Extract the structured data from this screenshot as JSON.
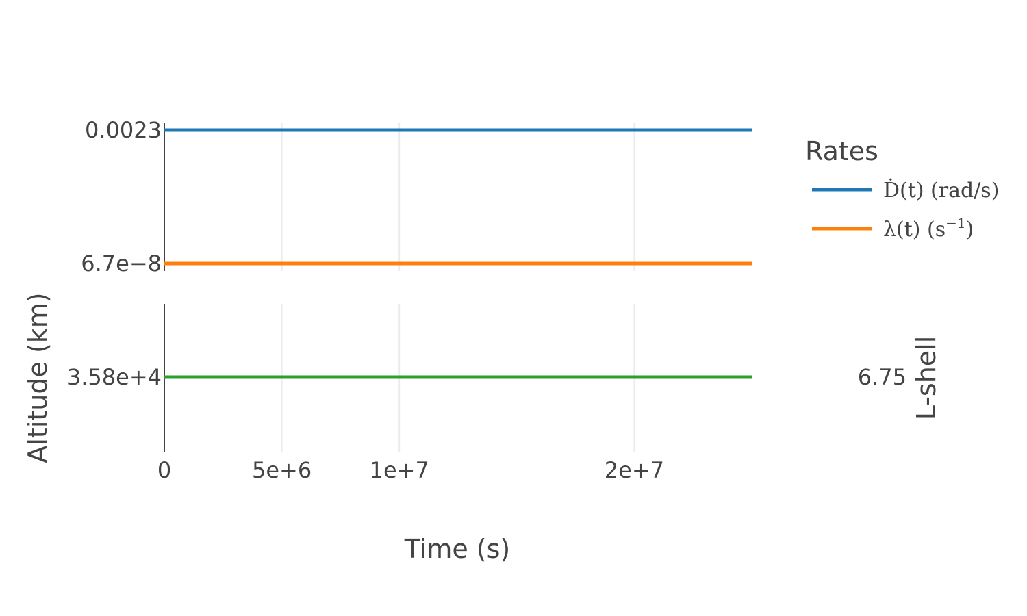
{
  "chart_data": [
    {
      "type": "line",
      "panel": "rates",
      "x": [
        0,
        25000000
      ],
      "series": [
        {
          "name": "D(t) (rad/s)",
          "legend_text": "Ḋ(t) (rad/s)",
          "color": "#1f77b4",
          "values": [
            0.0023,
            0.0023
          ]
        },
        {
          "name": "λ(t) (s-1)",
          "legend_text": "λ(t) (s",
          "legend_sup": "−1",
          "legend_close": ")",
          "color": "#ff7f0e",
          "values": [
            6.7e-08,
            6.7e-08
          ]
        }
      ],
      "yticks": [
        "0.0023",
        "6.7e−8"
      ],
      "legend": {
        "title": "Rates",
        "placement": "right-top"
      }
    },
    {
      "type": "line",
      "panel": "altitude",
      "x": [
        0,
        25000000
      ],
      "series": [
        {
          "name": "Altitude",
          "color": "#2ca02c",
          "values": [
            35800,
            35800
          ]
        }
      ],
      "yticks_left": [
        "3.58e+4"
      ],
      "yticks_right": [
        "6.75"
      ],
      "ylabel_left": "Altitude (km)",
      "ylabel_right": "L-shell"
    }
  ],
  "x_axis": {
    "title": "Time (s)",
    "range": [
      0,
      25000000
    ],
    "ticks": [
      {
        "value": 0,
        "label": "0"
      },
      {
        "value": 5000000,
        "label": "5e+6"
      },
      {
        "value": 10000000,
        "label": "1e+7"
      },
      {
        "value": 20000000,
        "label": "2e+7"
      }
    ],
    "grid": true
  }
}
